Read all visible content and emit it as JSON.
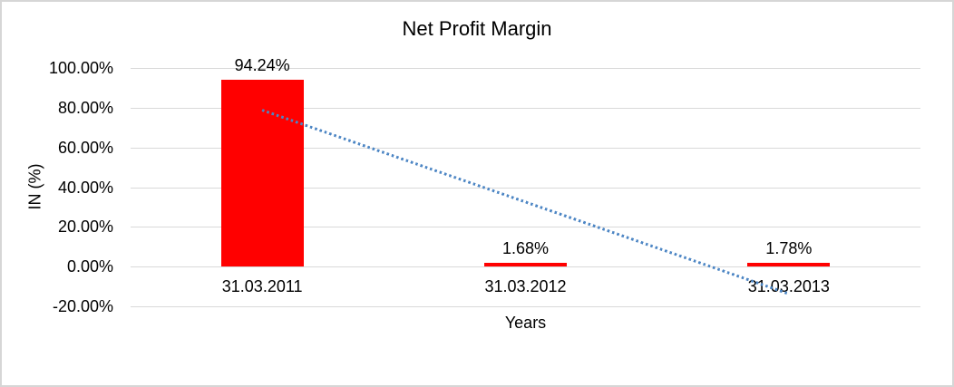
{
  "figure": {
    "background": "#ffffff",
    "border_color": "#d6d6d6"
  },
  "chart_data": {
    "type": "bar",
    "title": "Net Profit Margin",
    "xlabel": "Years",
    "ylabel": "IN (%)",
    "categories": [
      "31.03.2011",
      "31.03.2012",
      "31.03.2013"
    ],
    "values": [
      94.24,
      1.68,
      1.78
    ],
    "data_labels": [
      "94.24%",
      "1.68%",
      "1.78%"
    ],
    "ylim": [
      -20,
      100
    ],
    "ytick_step": 20,
    "ytick_labels": [
      "100.00%",
      "80.00%",
      "60.00%",
      "40.00%",
      "20.00%",
      "0.00%",
      "-20.00%"
    ],
    "grid": true,
    "legend": "none",
    "bar_color": "#ff0000",
    "gridline_color": "#d9d9d9",
    "text_color": "#000000",
    "trendline": {
      "style": "dotted",
      "color": "#4d86c4",
      "start_value": 78.81,
      "end_value": -13.66
    }
  }
}
